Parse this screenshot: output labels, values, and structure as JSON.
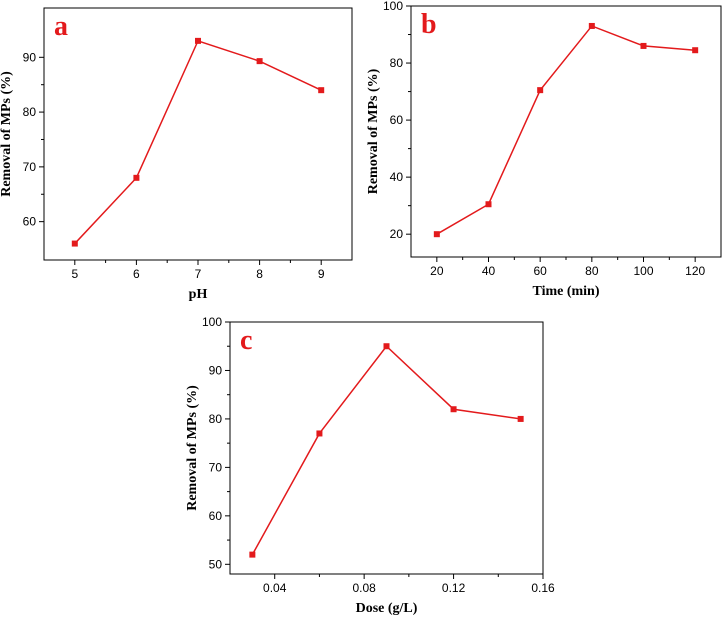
{
  "chart_data": [
    {
      "id": "a",
      "type": "line",
      "panel_label": "a",
      "xlabel": "pH",
      "ylabel": "Removal of MPs (%)",
      "x": [
        5,
        6,
        7,
        8,
        9
      ],
      "values": [
        56,
        68,
        93,
        89.3,
        84
      ],
      "xlim": [
        4.5,
        9.5
      ],
      "ylim": [
        53,
        99
      ],
      "xticks": [
        5,
        6,
        7,
        8,
        9
      ],
      "xtick_labels": [
        "5",
        "6",
        "7",
        "8",
        "9"
      ],
      "yticks": [
        60,
        70,
        80,
        90
      ],
      "ytick_labels": [
        "60",
        "70",
        "80",
        "90"
      ],
      "color": "#e31a1c"
    },
    {
      "id": "b",
      "type": "line",
      "panel_label": "b",
      "xlabel": "Time (min)",
      "ylabel": "Removal of MPs (%)",
      "x": [
        20,
        40,
        60,
        80,
        100,
        120
      ],
      "values": [
        20,
        30.5,
        70.5,
        93,
        86,
        84.5
      ],
      "xlim": [
        10,
        130
      ],
      "ylim": [
        12,
        100
      ],
      "xticks": [
        20,
        40,
        60,
        80,
        100,
        120
      ],
      "xtick_labels": [
        "20",
        "40",
        "60",
        "80",
        "100",
        "120"
      ],
      "yticks": [
        20,
        40,
        60,
        80,
        100
      ],
      "ytick_labels": [
        "20",
        "40",
        "60",
        "80",
        "100"
      ],
      "color": "#e31a1c"
    },
    {
      "id": "c",
      "type": "line",
      "panel_label": "c",
      "xlabel": "Dose (g/L)",
      "ylabel": "Removal of MPs (%)",
      "x": [
        0.03,
        0.06,
        0.09,
        0.12,
        0.15
      ],
      "values": [
        52,
        77,
        95,
        82,
        80
      ],
      "xlim": [
        0.02,
        0.16
      ],
      "ylim": [
        48,
        100
      ],
      "xticks": [
        0.04,
        0.08,
        0.12,
        0.16
      ],
      "xtick_labels": [
        "0.04",
        "0.08",
        "0.12",
        "0.16"
      ],
      "yticks": [
        50,
        60,
        70,
        80,
        90,
        100
      ],
      "ytick_labels": [
        "50",
        "60",
        "70",
        "80",
        "90",
        "100"
      ],
      "color": "#e31a1c"
    }
  ]
}
